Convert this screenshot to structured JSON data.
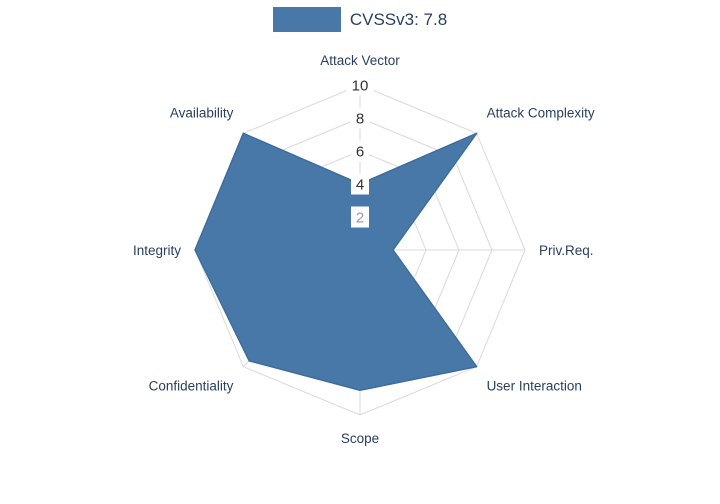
{
  "legend": {
    "label": "CVSSv3: 7.8"
  },
  "chart_data": {
    "type": "radar",
    "title": "",
    "categories": [
      "Attack Vector",
      "Attack Complexity",
      "Priv.Req.",
      "User Interaction",
      "Scope",
      "Confidentiality",
      "Integrity",
      "Availability"
    ],
    "series": [
      {
        "name": "CVSSv3: 7.8",
        "values": [
          4,
          10,
          2,
          10,
          8.5,
          9.5,
          10,
          10
        ]
      }
    ],
    "radial_range": [
      0,
      10
    ],
    "radial_ticks": [
      {
        "label": "10",
        "value": 10,
        "color": "#333333"
      },
      {
        "label": "8",
        "value": 8,
        "color": "#333333"
      },
      {
        "label": "6",
        "value": 6,
        "color": "#333333"
      },
      {
        "label": "4",
        "value": 4,
        "color": "#333333"
      },
      {
        "label": "2",
        "value": 2,
        "color": "#999999"
      }
    ],
    "start_axis": "top",
    "direction": "clockwise",
    "grid": true,
    "legend_position": "top-center",
    "colors": {
      "fill": "#4878a8",
      "stroke": "#3e6d9c",
      "grid": "#d9d9d9",
      "axis_label": "#2a3f5f",
      "background": "#ffffff"
    }
  }
}
